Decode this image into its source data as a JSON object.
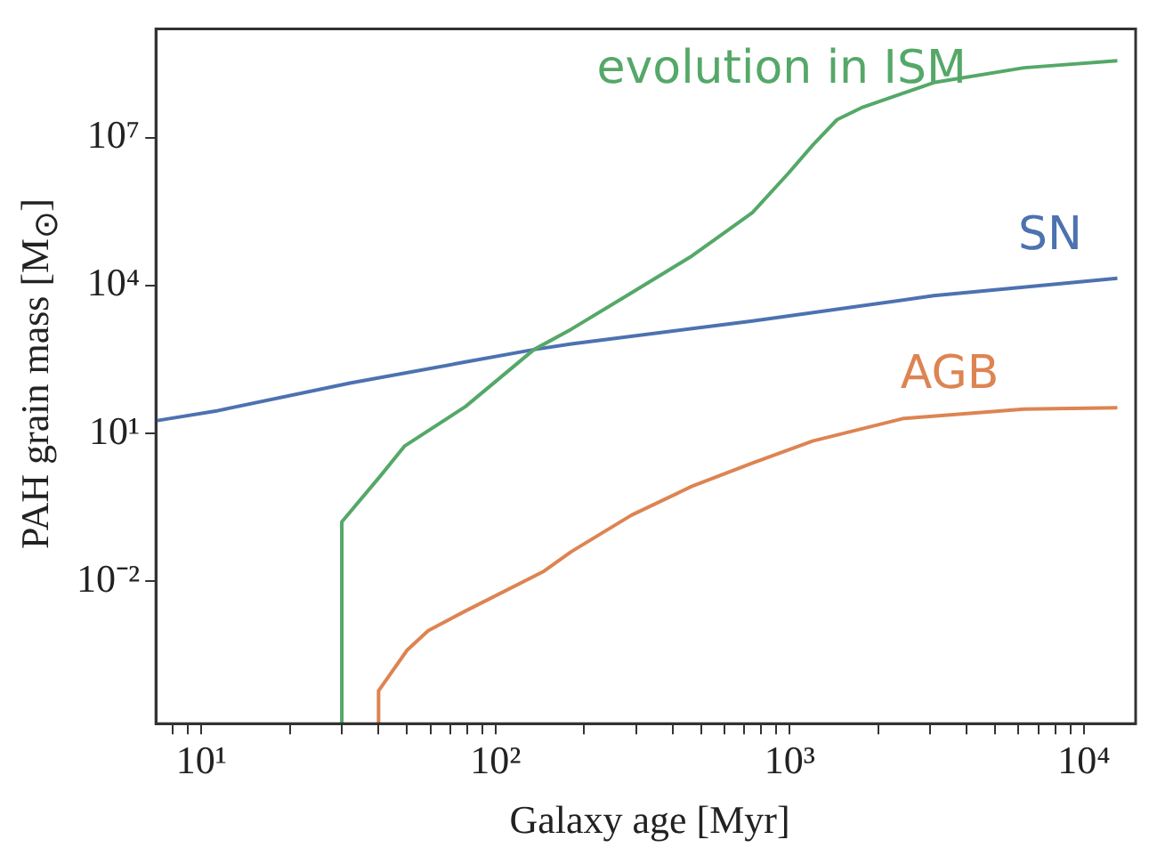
{
  "chart_data": {
    "type": "line",
    "xlabel": "Galaxy age  [Myr]",
    "ylabel": "PAH grain mass  [M$_{⊙}$]",
    "log": "xy",
    "grid": false,
    "legend": false,
    "xlim": [
      7,
      15000
    ],
    "ylim": [
      1.3e-05,
      1600000000.0
    ],
    "xticks": [
      {
        "value": 8,
        "label": null
      },
      {
        "value": 9,
        "label": null
      },
      {
        "value": 10,
        "label": "10¹"
      },
      {
        "value": 20,
        "label": null
      },
      {
        "value": 30,
        "label": null
      },
      {
        "value": 40,
        "label": null
      },
      {
        "value": 50,
        "label": null
      },
      {
        "value": 60,
        "label": null
      },
      {
        "value": 70,
        "label": null
      },
      {
        "value": 80,
        "label": null
      },
      {
        "value": 90,
        "label": null
      },
      {
        "value": 100,
        "label": "10²"
      },
      {
        "value": 200,
        "label": null
      },
      {
        "value": 300,
        "label": null
      },
      {
        "value": 400,
        "label": null
      },
      {
        "value": 500,
        "label": null
      },
      {
        "value": 600,
        "label": null
      },
      {
        "value": 700,
        "label": null
      },
      {
        "value": 800,
        "label": null
      },
      {
        "value": 900,
        "label": null
      },
      {
        "value": 1000,
        "label": "10³"
      },
      {
        "value": 2000,
        "label": null
      },
      {
        "value": 3000,
        "label": null
      },
      {
        "value": 4000,
        "label": null
      },
      {
        "value": 5000,
        "label": null
      },
      {
        "value": 6000,
        "label": null
      },
      {
        "value": 7000,
        "label": null
      },
      {
        "value": 8000,
        "label": null
      },
      {
        "value": 9000,
        "label": null
      },
      {
        "value": 10000,
        "label": "10⁴"
      }
    ],
    "yticks": [
      {
        "value": 0.01,
        "label": "10⁻²"
      },
      {
        "value": 10,
        "label": "10¹"
      },
      {
        "value": 10000,
        "label": "10⁴"
      },
      {
        "value": 10000000,
        "label": "10⁷"
      }
    ],
    "series": [
      {
        "name": "evolution in ISM",
        "color": "#55a868",
        "x": [
          30,
          30,
          40.7,
          49,
          79,
          135,
          181,
          290,
          466,
          747,
          991,
          1197,
          1448,
          1750,
          3090,
          6270,
          13000
        ],
        "values": [
          1.3e-05,
          0.16,
          1.4,
          5.5,
          35,
          500,
          1300,
          7100,
          40000,
          300000,
          1900000,
          7000000,
          23000000,
          40000000,
          130000000,
          260000000,
          360000000
        ]
      },
      {
        "name": "SN",
        "color": "#4c72b0",
        "x": [
          7,
          11.4,
          32,
          79,
          135,
          181,
          747,
          3090,
          13000
        ],
        "values": [
          18,
          29,
          105,
          280,
          500,
          650,
          1900,
          6200,
          14000
        ]
      },
      {
        "name": "AGB",
        "color": "#dd8452",
        "x": [
          40,
          40,
          50,
          59,
          79,
          146,
          181,
          290,
          466,
          747,
          1197,
          2430,
          6270,
          13000
        ],
        "values": [
          1.3e-05,
          6e-05,
          0.0004,
          0.001,
          0.0025,
          0.016,
          0.04,
          0.22,
          0.85,
          2.5,
          7,
          20,
          31,
          33
        ]
      }
    ]
  }
}
